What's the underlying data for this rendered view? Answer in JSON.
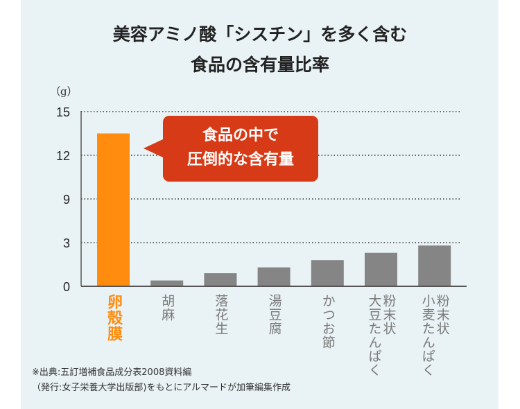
{
  "chart_data": {
    "type": "bar",
    "title": "美容アミノ酸「シスチン」を多く含む\n食品の含有量比率",
    "ylabel": "（g）",
    "yticks": [
      0,
      3,
      9,
      12,
      15
    ],
    "ylim": [
      0,
      15
    ],
    "axis_note": "broken y-axis: ticks equally spaced",
    "grid": "dotted horizontal",
    "categories": [
      "卵殻膜",
      "胡麻",
      "落花生",
      "湯豆腐",
      "かつお節",
      "粉末状\n大豆たんぱく",
      "粉末状\n小麦たんぱく"
    ],
    "values": [
      13.5,
      0.4,
      0.9,
      1.3,
      1.8,
      2.3,
      2.8
    ],
    "highlight_index": 0,
    "annotation": "食品の中で\n圧倒的な含有量",
    "colors": {
      "highlight": "#ff8c0f",
      "bar": "#858585",
      "callout": "#d63a16",
      "background": "#e9f2f5"
    }
  },
  "footnote": "※出典:五訂増補食品成分表2008資料編\n（発行:女子栄養大学出版部)をもとにアルマードが加筆編集作成"
}
